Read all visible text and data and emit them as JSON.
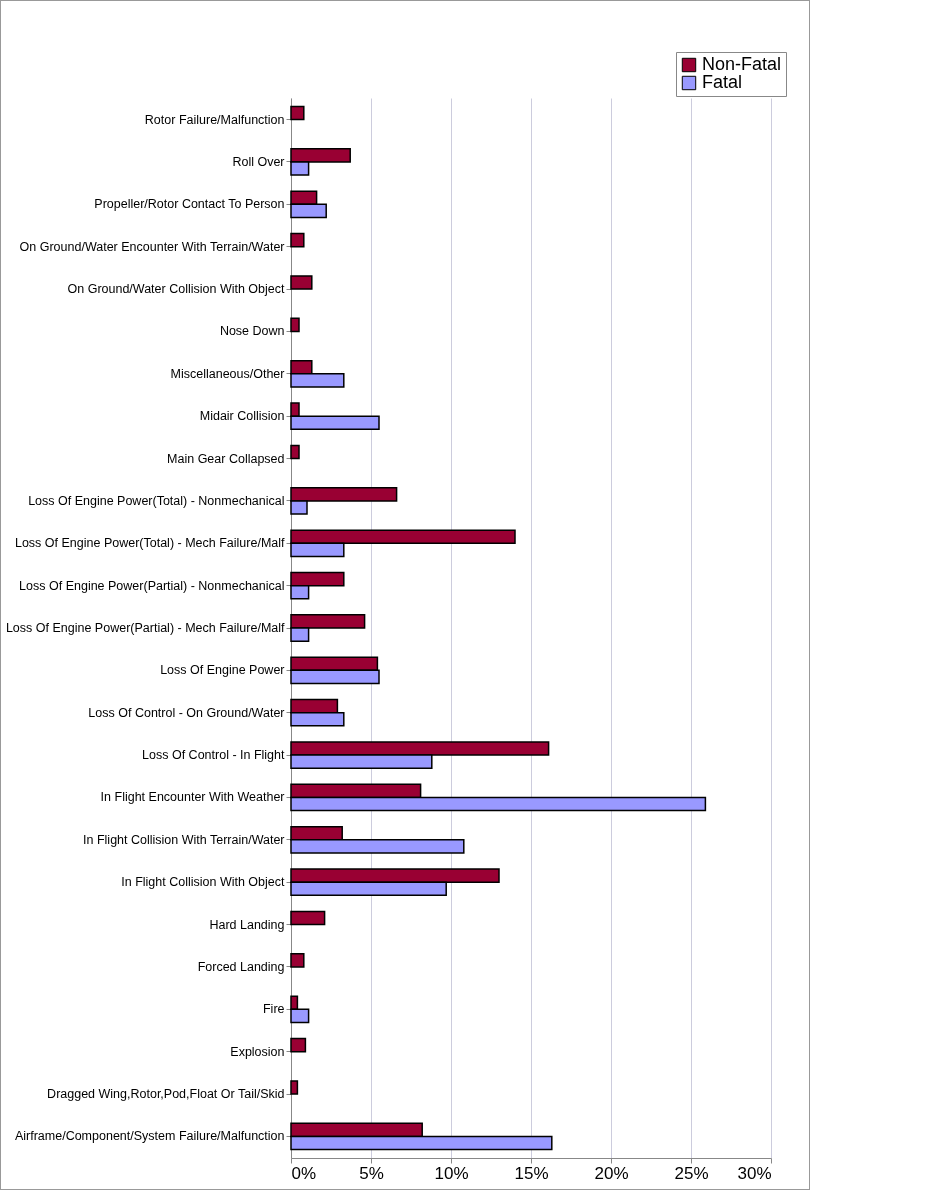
{
  "chart_data": {
    "type": "bar",
    "orientation": "horizontal",
    "categories": [
      "Rotor Failure/Malfunction",
      "Roll Over",
      "Propeller/Rotor Contact To Person",
      "On Ground/Water Encounter With Terrain/Water",
      "On Ground/Water Collision With Object",
      "Nose Down",
      "Miscellaneous/Other",
      "Midair Collision",
      "Main Gear Collapsed",
      "Loss Of Engine Power(Total) - Nonmechanical",
      "Loss Of Engine Power(Total) - Mech Failure/Malf",
      "Loss Of Engine Power(Partial) - Nonmechanical",
      "Loss Of Engine Power(Partial) - Mech Failure/Malf",
      "Loss Of Engine Power",
      "Loss Of Control - On Ground/Water",
      "Loss Of Control - In Flight",
      "In Flight Encounter With Weather",
      "In Flight Collision With Terrain/Water",
      "In Flight Collision With Object",
      "Hard Landing",
      "Forced Landing",
      "Fire",
      "Explosion",
      "Dragged Wing,Rotor,Pod,Float Or Tail/Skid",
      "Airframe/Component/System Failure/Malfunction"
    ],
    "series": [
      {
        "name": "Non-Fatal",
        "color": "#990033",
        "values": [
          0.8,
          3.7,
          1.6,
          0.8,
          1.3,
          0.5,
          1.3,
          0.5,
          0.5,
          6.6,
          14.0,
          3.3,
          4.6,
          5.4,
          2.9,
          16.1,
          8.1,
          3.2,
          13.0,
          2.1,
          0.8,
          0.4,
          0.9,
          0.4,
          8.2
        ]
      },
      {
        "name": "Fatal",
        "color": "#9999ff",
        "values": [
          null,
          1.1,
          2.2,
          null,
          null,
          null,
          3.3,
          5.5,
          null,
          1.0,
          3.3,
          1.1,
          1.1,
          5.5,
          3.3,
          8.8,
          25.9,
          10.8,
          9.7,
          null,
          null,
          1.1,
          null,
          null,
          16.3
        ]
      }
    ],
    "xlim": [
      0,
      30
    ],
    "xticks": [
      {
        "value": 0,
        "label": "0%"
      },
      {
        "value": 5,
        "label": "5%"
      },
      {
        "value": 10,
        "label": "10%"
      },
      {
        "value": 15,
        "label": "15%"
      },
      {
        "value": 20,
        "label": "20%"
      },
      {
        "value": 25,
        "label": "25%"
      },
      {
        "value": 30,
        "label": "30%"
      }
    ],
    "grid": "x",
    "legend": "top right"
  }
}
